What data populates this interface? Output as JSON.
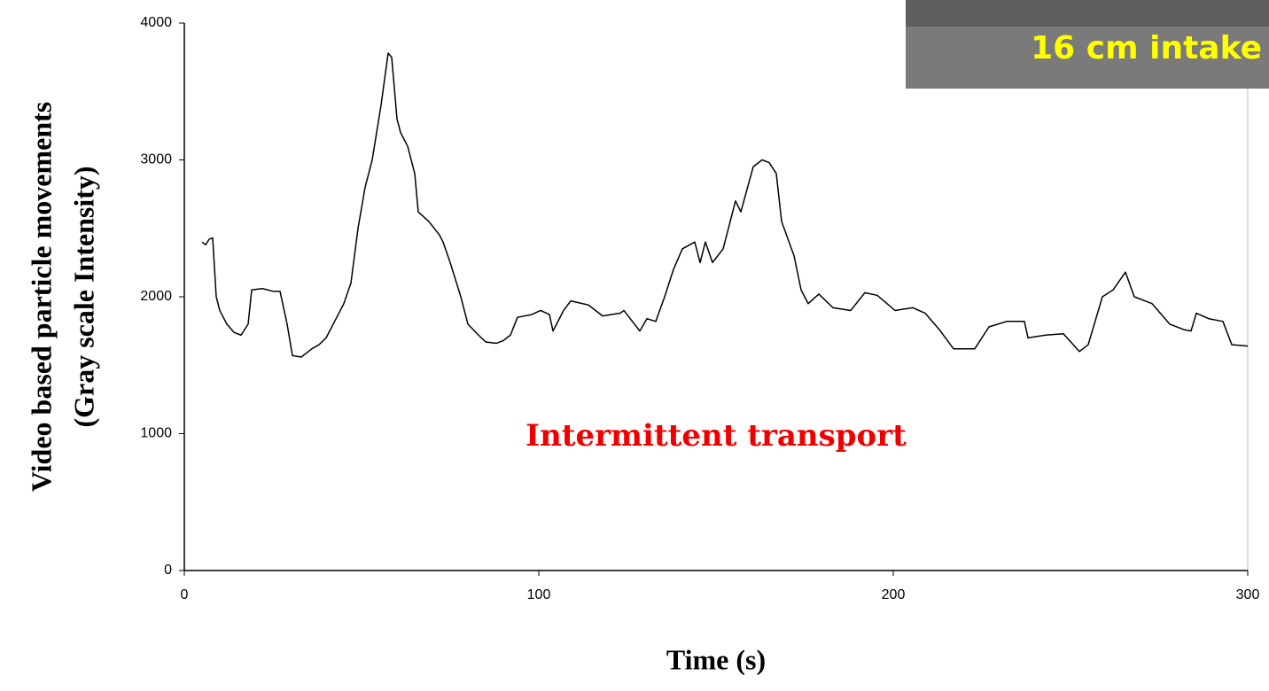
{
  "chart_data": {
    "type": "line",
    "xlabel": "Time (s)",
    "ylabel": [
      "Video based  particle movements",
      "(Gray scale Intensity)"
    ],
    "annotations": [
      "Intermittent transport",
      "16 cm intake"
    ],
    "x": [
      5,
      6,
      7,
      8,
      9,
      10,
      12,
      14,
      16,
      18,
      19,
      22,
      25,
      27,
      29,
      30.5,
      33,
      36,
      38,
      40,
      43,
      45,
      47,
      49,
      51,
      53,
      55.5,
      57.5,
      58.5,
      60,
      61,
      63,
      65,
      66,
      69,
      72,
      73,
      75,
      78,
      80,
      83,
      85,
      88,
      90,
      92,
      94,
      98,
      100.5,
      103,
      104,
      107,
      109,
      114,
      118,
      123,
      124,
      127,
      128.5,
      130.5,
      133,
      135.5,
      138,
      140.5,
      144,
      145.5,
      147,
      149,
      152,
      155.5,
      157,
      160.5,
      163,
      165,
      167,
      168.5,
      172,
      174,
      176,
      179,
      183,
      188,
      192,
      195.5,
      200.5,
      205.5,
      209,
      213,
      217,
      223,
      227,
      232,
      237,
      238,
      243,
      248,
      252.5,
      255,
      259,
      262,
      265.5,
      268,
      273,
      278,
      282,
      284,
      285.5,
      289,
      293,
      295.5,
      300
    ],
    "series": [
      {
        "color": "#000000",
        "values": [
          2400,
          2380,
          2420,
          2430,
          2000,
          1900,
          1800,
          1740,
          1720,
          1800,
          2050,
          2060,
          2040,
          2040,
          1800,
          1570,
          1560,
          1620,
          1650,
          1700,
          1850,
          1950,
          2100,
          2500,
          2800,
          3000,
          3400,
          3780,
          3750,
          3300,
          3200,
          3100,
          2900,
          2620,
          2550,
          2450,
          2400,
          2250,
          2000,
          1800,
          1720,
          1670,
          1660,
          1680,
          1720,
          1850,
          1870,
          1900,
          1870,
          1750,
          1900,
          1970,
          1940,
          1860,
          1880,
          1900,
          1800,
          1750,
          1840,
          1820,
          2000,
          2200,
          2350,
          2400,
          2250,
          2400,
          2250,
          2350,
          2700,
          2620,
          2950,
          3000,
          2980,
          2900,
          2550,
          2300,
          2050,
          1950,
          2020,
          1920,
          1900,
          2030,
          2010,
          1900,
          1920,
          1880,
          1760,
          1620,
          1620,
          1780,
          1820,
          1820,
          1700,
          1720,
          1730,
          1600,
          1650,
          2000,
          2050,
          2180,
          2000,
          1950,
          1800,
          1760,
          1750,
          1880,
          1840,
          1820,
          1650,
          1640
        ]
      }
    ],
    "xlim": [
      0,
      300
    ],
    "xticks": [
      0,
      100,
      200,
      300
    ],
    "ylim": [
      0,
      4000
    ],
    "yticks": [
      0,
      1000,
      2000,
      3000,
      4000
    ]
  }
}
